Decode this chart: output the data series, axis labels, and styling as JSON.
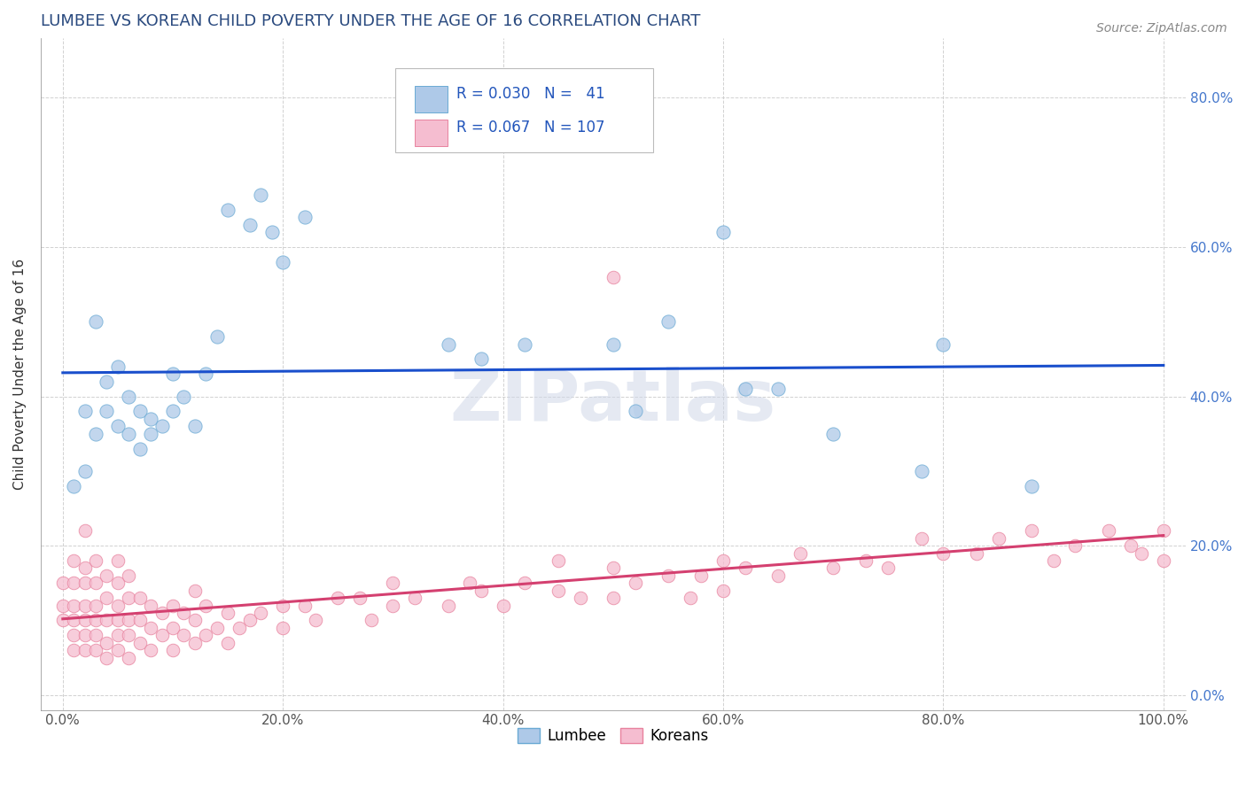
{
  "title": "LUMBEE VS KOREAN CHILD POVERTY UNDER THE AGE OF 16 CORRELATION CHART",
  "source": "Source: ZipAtlas.com",
  "ylabel": "Child Poverty Under the Age of 16",
  "xlim": [
    -0.02,
    1.02
  ],
  "ylim": [
    -0.02,
    0.88
  ],
  "xticks": [
    0.0,
    0.2,
    0.4,
    0.6,
    0.8,
    1.0
  ],
  "yticks": [
    0.0,
    0.2,
    0.4,
    0.6,
    0.8
  ],
  "xtick_labels": [
    "0.0%",
    "20.0%",
    "40.0%",
    "60.0%",
    "80.0%",
    "100.0%"
  ],
  "ytick_labels_right": [
    "0.0%",
    "20.0%",
    "40.0%",
    "60.0%",
    "80.0%"
  ],
  "lumbee_color": "#aec9e8",
  "lumbee_edge": "#6aaad4",
  "korean_color": "#f5bdd0",
  "korean_edge": "#e8829e",
  "trend_lumbee_color": "#1a4fcc",
  "trend_korean_color": "#d44070",
  "watermark": "ZIPatlas",
  "legend_line1": "R = 0.030   N =   41",
  "legend_line2": "R = 0.067   N = 107",
  "lumbee_x": [
    0.01,
    0.02,
    0.02,
    0.03,
    0.03,
    0.04,
    0.04,
    0.05,
    0.05,
    0.06,
    0.06,
    0.07,
    0.07,
    0.08,
    0.08,
    0.09,
    0.1,
    0.1,
    0.11,
    0.12,
    0.13,
    0.14,
    0.15,
    0.17,
    0.18,
    0.19,
    0.2,
    0.22,
    0.35,
    0.38,
    0.42,
    0.5,
    0.52,
    0.55,
    0.6,
    0.62,
    0.65,
    0.7,
    0.78,
    0.8,
    0.88
  ],
  "lumbee_y": [
    0.28,
    0.3,
    0.38,
    0.35,
    0.5,
    0.38,
    0.42,
    0.36,
    0.44,
    0.35,
    0.4,
    0.33,
    0.38,
    0.35,
    0.37,
    0.36,
    0.38,
    0.43,
    0.4,
    0.36,
    0.43,
    0.48,
    0.65,
    0.63,
    0.67,
    0.62,
    0.58,
    0.64,
    0.47,
    0.45,
    0.47,
    0.47,
    0.38,
    0.5,
    0.62,
    0.41,
    0.41,
    0.35,
    0.3,
    0.47,
    0.28
  ],
  "korean_x_dense": [
    0.0,
    0.0,
    0.0,
    0.01,
    0.01,
    0.01,
    0.01,
    0.01,
    0.01,
    0.02,
    0.02,
    0.02,
    0.02,
    0.02,
    0.02,
    0.02,
    0.03,
    0.03,
    0.03,
    0.03,
    0.03,
    0.03,
    0.04,
    0.04,
    0.04,
    0.04,
    0.04,
    0.05,
    0.05,
    0.05,
    0.05,
    0.05,
    0.05,
    0.06,
    0.06,
    0.06,
    0.06,
    0.06,
    0.07,
    0.07,
    0.07,
    0.08,
    0.08,
    0.08,
    0.09,
    0.09,
    0.1,
    0.1,
    0.1,
    0.11,
    0.11,
    0.12,
    0.12,
    0.12,
    0.13,
    0.13,
    0.14,
    0.15,
    0.15,
    0.16,
    0.17,
    0.18,
    0.2,
    0.2,
    0.22,
    0.23,
    0.25,
    0.27,
    0.28,
    0.3,
    0.3,
    0.32,
    0.35,
    0.37,
    0.38,
    0.4,
    0.42,
    0.45,
    0.45,
    0.47,
    0.5,
    0.5,
    0.52,
    0.55,
    0.57,
    0.58,
    0.6,
    0.6,
    0.62,
    0.65,
    0.67,
    0.7,
    0.73,
    0.75,
    0.78,
    0.8,
    0.83,
    0.85,
    0.88,
    0.9,
    0.92,
    0.95,
    0.97,
    0.98,
    1.0,
    1.0,
    0.5
  ],
  "korean_y_dense": [
    0.1,
    0.12,
    0.15,
    0.06,
    0.08,
    0.1,
    0.12,
    0.15,
    0.18,
    0.06,
    0.08,
    0.1,
    0.12,
    0.15,
    0.17,
    0.22,
    0.06,
    0.08,
    0.1,
    0.12,
    0.15,
    0.18,
    0.05,
    0.07,
    0.1,
    0.13,
    0.16,
    0.06,
    0.08,
    0.1,
    0.12,
    0.15,
    0.18,
    0.05,
    0.08,
    0.1,
    0.13,
    0.16,
    0.07,
    0.1,
    0.13,
    0.06,
    0.09,
    0.12,
    0.08,
    0.11,
    0.06,
    0.09,
    0.12,
    0.08,
    0.11,
    0.07,
    0.1,
    0.14,
    0.08,
    0.12,
    0.09,
    0.07,
    0.11,
    0.09,
    0.1,
    0.11,
    0.09,
    0.12,
    0.12,
    0.1,
    0.13,
    0.13,
    0.1,
    0.12,
    0.15,
    0.13,
    0.12,
    0.15,
    0.14,
    0.12,
    0.15,
    0.14,
    0.18,
    0.13,
    0.13,
    0.17,
    0.15,
    0.16,
    0.13,
    0.16,
    0.14,
    0.18,
    0.17,
    0.16,
    0.19,
    0.17,
    0.18,
    0.17,
    0.21,
    0.19,
    0.19,
    0.21,
    0.22,
    0.18,
    0.2,
    0.22,
    0.2,
    0.19,
    0.18,
    0.22,
    0.56
  ]
}
